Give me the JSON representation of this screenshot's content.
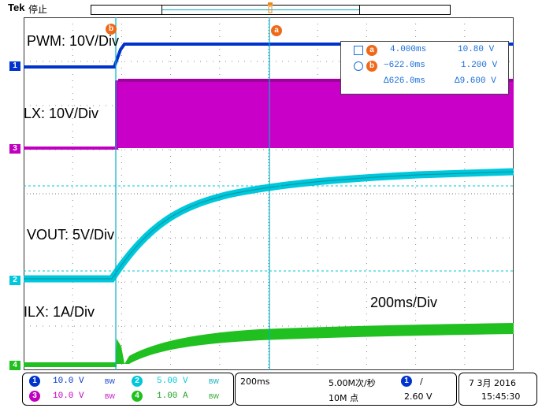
{
  "header": {
    "brand": "Tek",
    "state": "停止"
  },
  "cursors": {
    "a_label": "a",
    "b_label": "b"
  },
  "labels": {
    "pwm": "PWM: 10V/Div",
    "lx": "LX: 10V/Div",
    "vout": "VOUT: 5V/Div",
    "ilx": "ILX: 1A/Div",
    "timebase": "200ms/Div"
  },
  "markers": {
    "ch1": "1",
    "ch2": "2",
    "ch3": "3",
    "ch4": "4"
  },
  "measurements": {
    "a_time": "4.000ms",
    "a_volt": "10.80 V",
    "b_time": "−622.0ms",
    "b_volt": "1.200 V",
    "delta_time": "Δ626.0ms",
    "delta_volt": "Δ9.600 V"
  },
  "status": {
    "ch1_num": "1",
    "ch1_scale": "10.0 V",
    "ch1_bw": "BW",
    "ch2_num": "2",
    "ch2_scale": "5.00 V",
    "ch2_bw": "BW",
    "ch3_num": "3",
    "ch3_scale": "10.0 V",
    "ch3_bw": "BW",
    "ch4_num": "4",
    "ch4_scale": "1.00 A",
    "ch4_bw": "BW",
    "time_div": "200ms",
    "sample_rate": "5.00M次/秒",
    "record_length": "10M 点",
    "trig_ch": "1",
    "trig_slope": "/",
    "trig_level": "2.60 V",
    "date": "7 3月 2016",
    "time": "15:45:30"
  },
  "colors": {
    "ch1": "#0033cc",
    "ch2": "#00c8dc",
    "ch3": "#c000c0",
    "ch4": "#20c020",
    "cursor": "#00b3c6",
    "cursor_badge": "#ee6a1a",
    "grid": "#000000"
  }
}
